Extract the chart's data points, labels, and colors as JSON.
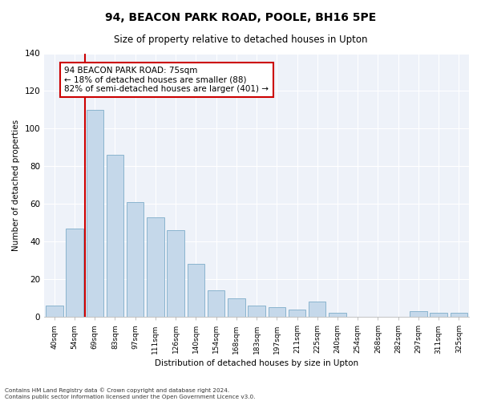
{
  "title": "94, BEACON PARK ROAD, POOLE, BH16 5PE",
  "subtitle": "Size of property relative to detached houses in Upton",
  "xlabel": "Distribution of detached houses by size in Upton",
  "ylabel": "Number of detached properties",
  "bar_labels": [
    "40sqm",
    "54sqm",
    "69sqm",
    "83sqm",
    "97sqm",
    "111sqm",
    "126sqm",
    "140sqm",
    "154sqm",
    "168sqm",
    "183sqm",
    "197sqm",
    "211sqm",
    "225sqm",
    "240sqm",
    "254sqm",
    "268sqm",
    "282sqm",
    "297sqm",
    "311sqm",
    "325sqm"
  ],
  "bar_values": [
    6,
    47,
    110,
    86,
    61,
    53,
    46,
    28,
    14,
    10,
    6,
    5,
    4,
    8,
    2,
    0,
    0,
    0,
    3,
    2,
    2
  ],
  "bar_color": "#c5d8ea",
  "bar_edge_color": "#8ab4ce",
  "vline_x": 1.5,
  "annotation_line1": "94 BEACON PARK ROAD: 75sqm",
  "annotation_line2": "← 18% of detached houses are smaller (88)",
  "annotation_line3": "82% of semi-detached houses are larger (401) →",
  "annotation_box_color": "#ffffff",
  "annotation_border_color": "#cc0000",
  "vline_color": "#cc0000",
  "ylim": [
    0,
    140
  ],
  "yticks": [
    0,
    20,
    40,
    60,
    80,
    100,
    120,
    140
  ],
  "bg_color": "#eef2f9",
  "footer1": "Contains HM Land Registry data © Crown copyright and database right 2024.",
  "footer2": "Contains public sector information licensed under the Open Government Licence v3.0."
}
